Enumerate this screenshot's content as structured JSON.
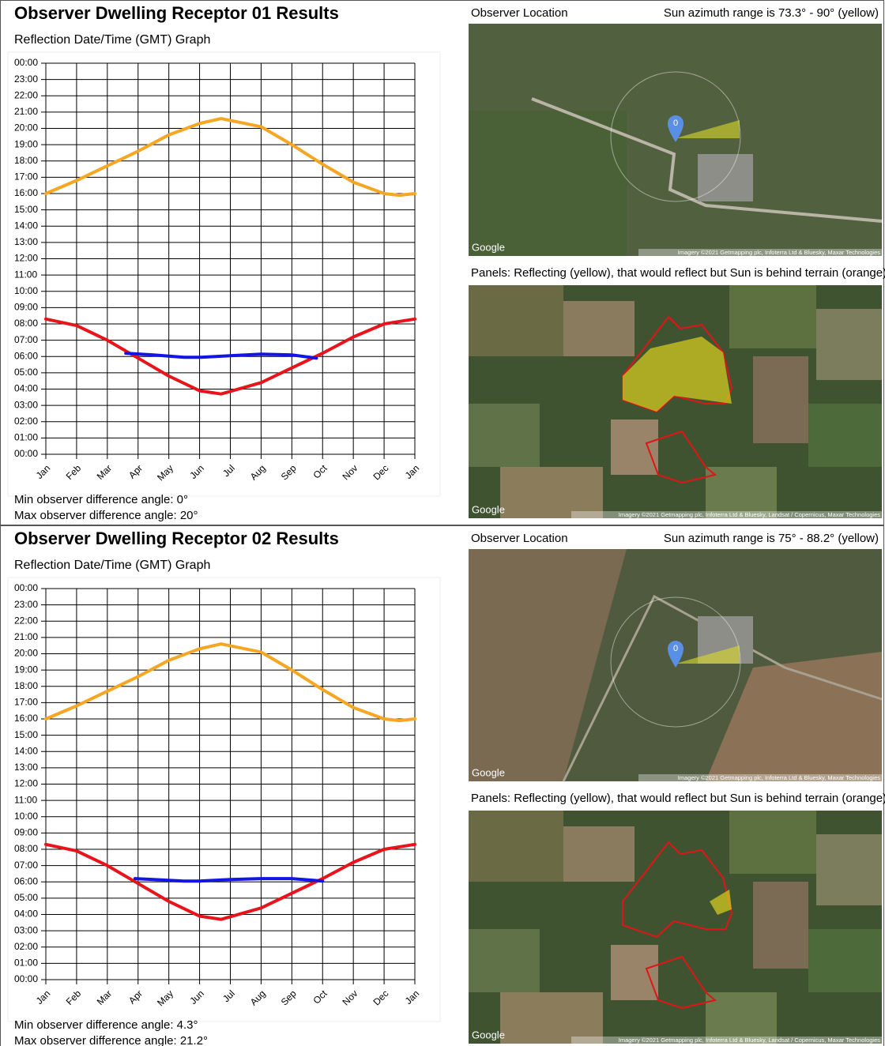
{
  "reports": [
    {
      "title": "Observer Dwelling Receptor 01 Results",
      "observer_location": "Observer Location",
      "sun_azimuth": "Sun azimuth range is 73.3° - 90° (yellow)",
      "pin_label": "0",
      "panels_caption": "Panels: Reflecting (yellow), that would reflect but Sun is behind terrain (orange)",
      "map1_logo": "Google",
      "map1_credit": "Imagery ©2021 Getmapping plc, Infoterra Ltd & Bluesky, Maxar Technologies",
      "map2_logo": "Google",
      "map2_credit": "Imagery ©2021 Getmapping plc, Infoterra Ltd & Bluesky, Landsat / Copernicus, Maxar Technologies",
      "min_angle": "Min observer difference angle: 0°",
      "max_angle": "Max observer difference angle: 20°"
    },
    {
      "title": "Observer Dwelling Receptor 02 Results",
      "observer_location": "Observer Location",
      "sun_azimuth": "Sun azimuth range is 75° - 88.2° (yellow)",
      "pin_label": "0",
      "panels_caption": "Panels: Reflecting (yellow), that would reflect but Sun is behind terrain (orange)",
      "map1_logo": "Google",
      "map1_credit": "Imagery ©2021 Getmapping plc, Infoterra Ltd & Bluesky, Maxar Technologies",
      "map2_logo": "Google",
      "map2_credit": "Imagery ©2021 Getmapping plc, Infoterra Ltd & Bluesky, Landsat / Copernicus, Maxar Technologies",
      "min_angle": "Min observer difference angle: 4.3°",
      "max_angle": "Max observer difference angle: 21.2°"
    }
  ],
  "chart_data": [
    {
      "type": "line",
      "title": "Reflection Date/Time (GMT) Graph",
      "grid": true,
      "xlim": [
        0,
        12
      ],
      "xticks": [
        {
          "value": 0,
          "label": "Jan"
        },
        {
          "value": 1,
          "label": "Feb"
        },
        {
          "value": 2,
          "label": "Mar"
        },
        {
          "value": 3,
          "label": "Apr"
        },
        {
          "value": 4,
          "label": "May"
        },
        {
          "value": 5,
          "label": "Jun"
        },
        {
          "value": 6,
          "label": "Jul"
        },
        {
          "value": 7,
          "label": "Aug"
        },
        {
          "value": 8,
          "label": "Sep"
        },
        {
          "value": 9,
          "label": "Oct"
        },
        {
          "value": 10,
          "label": "Nov"
        },
        {
          "value": 11,
          "label": "Dec"
        },
        {
          "value": 12,
          "label": "Jan"
        }
      ],
      "ylim": [
        0,
        24
      ],
      "yticks": [
        {
          "value": 24,
          "label": "00:00"
        },
        {
          "value": 23,
          "label": "23:00"
        },
        {
          "value": 22,
          "label": "22:00"
        },
        {
          "value": 21,
          "label": "21:00"
        },
        {
          "value": 20,
          "label": "20:00"
        },
        {
          "value": 19,
          "label": "19:00"
        },
        {
          "value": 18,
          "label": "18:00"
        },
        {
          "value": 17,
          "label": "17:00"
        },
        {
          "value": 16,
          "label": "16:00"
        },
        {
          "value": 15,
          "label": "15:00"
        },
        {
          "value": 14,
          "label": "14:00"
        },
        {
          "value": 13,
          "label": "13:00"
        },
        {
          "value": 12,
          "label": "12:00"
        },
        {
          "value": 11,
          "label": "11:00"
        },
        {
          "value": 10,
          "label": "10:00"
        },
        {
          "value": 9,
          "label": "09:00"
        },
        {
          "value": 8,
          "label": "08:00"
        },
        {
          "value": 7,
          "label": "07:00"
        },
        {
          "value": 6,
          "label": "06:00"
        },
        {
          "value": 5,
          "label": "05:00"
        },
        {
          "value": 4,
          "label": "04:00"
        },
        {
          "value": 3,
          "label": "03:00"
        },
        {
          "value": 2,
          "label": "02:00"
        },
        {
          "value": 1,
          "label": "01:00"
        },
        {
          "value": 0,
          "label": "00:00"
        }
      ],
      "series": [
        {
          "color": "#f5a623",
          "x": [
            0,
            1,
            2,
            3,
            4,
            5,
            5.7,
            7,
            8,
            9,
            10,
            11,
            11.5,
            12
          ],
          "values": [
            16.0,
            16.8,
            17.7,
            18.6,
            19.6,
            20.3,
            20.6,
            20.1,
            19.0,
            17.8,
            16.7,
            16.0,
            15.9,
            16.0
          ]
        },
        {
          "color": "#e8141b",
          "x": [
            0,
            1,
            2,
            3,
            4,
            5,
            5.7,
            7,
            8,
            9,
            10,
            11,
            12
          ],
          "values": [
            8.3,
            7.9,
            7.0,
            5.9,
            4.8,
            3.9,
            3.7,
            4.4,
            5.3,
            6.2,
            7.2,
            8.0,
            8.3
          ]
        },
        {
          "color": "#1414e6",
          "x": [
            2.6,
            3.5,
            4.5,
            5.0,
            6.0,
            7.0,
            8.0,
            8.8
          ],
          "values": [
            6.2,
            6.1,
            5.95,
            5.95,
            6.05,
            6.15,
            6.1,
            5.9
          ]
        }
      ]
    },
    {
      "type": "line",
      "title": "Reflection Date/Time (GMT) Graph",
      "grid": true,
      "xlim": [
        0,
        12
      ],
      "xticks": [
        {
          "value": 0,
          "label": "Jan"
        },
        {
          "value": 1,
          "label": "Feb"
        },
        {
          "value": 2,
          "label": "Mar"
        },
        {
          "value": 3,
          "label": "Apr"
        },
        {
          "value": 4,
          "label": "May"
        },
        {
          "value": 5,
          "label": "Jun"
        },
        {
          "value": 6,
          "label": "Jul"
        },
        {
          "value": 7,
          "label": "Aug"
        },
        {
          "value": 8,
          "label": "Sep"
        },
        {
          "value": 9,
          "label": "Oct"
        },
        {
          "value": 10,
          "label": "Nov"
        },
        {
          "value": 11,
          "label": "Dec"
        },
        {
          "value": 12,
          "label": "Jan"
        }
      ],
      "ylim": [
        0,
        24
      ],
      "yticks": [
        {
          "value": 24,
          "label": "00:00"
        },
        {
          "value": 23,
          "label": "23:00"
        },
        {
          "value": 22,
          "label": "22:00"
        },
        {
          "value": 21,
          "label": "21:00"
        },
        {
          "value": 20,
          "label": "20:00"
        },
        {
          "value": 19,
          "label": "19:00"
        },
        {
          "value": 18,
          "label": "18:00"
        },
        {
          "value": 17,
          "label": "17:00"
        },
        {
          "value": 16,
          "label": "16:00"
        },
        {
          "value": 15,
          "label": "15:00"
        },
        {
          "value": 14,
          "label": "14:00"
        },
        {
          "value": 13,
          "label": "13:00"
        },
        {
          "value": 12,
          "label": "12:00"
        },
        {
          "value": 11,
          "label": "11:00"
        },
        {
          "value": 10,
          "label": "10:00"
        },
        {
          "value": 9,
          "label": "09:00"
        },
        {
          "value": 8,
          "label": "08:00"
        },
        {
          "value": 7,
          "label": "07:00"
        },
        {
          "value": 6,
          "label": "06:00"
        },
        {
          "value": 5,
          "label": "05:00"
        },
        {
          "value": 4,
          "label": "04:00"
        },
        {
          "value": 3,
          "label": "03:00"
        },
        {
          "value": 2,
          "label": "02:00"
        },
        {
          "value": 1,
          "label": "01:00"
        },
        {
          "value": 0,
          "label": "00:00"
        }
      ],
      "series": [
        {
          "color": "#f5a623",
          "x": [
            0,
            1,
            2,
            3,
            4,
            5,
            5.7,
            7,
            8,
            9,
            10,
            11,
            11.5,
            12
          ],
          "values": [
            16.0,
            16.8,
            17.7,
            18.6,
            19.6,
            20.3,
            20.6,
            20.1,
            19.0,
            17.8,
            16.7,
            16.0,
            15.9,
            16.0
          ]
        },
        {
          "color": "#e8141b",
          "x": [
            0,
            1,
            2,
            3,
            4,
            5,
            5.7,
            7,
            8,
            9,
            10,
            11,
            12
          ],
          "values": [
            8.3,
            7.9,
            7.0,
            5.9,
            4.8,
            3.9,
            3.7,
            4.4,
            5.3,
            6.2,
            7.2,
            8.0,
            8.3
          ]
        },
        {
          "color": "#1414e6",
          "x": [
            2.9,
            3.5,
            4.5,
            5.0,
            6.0,
            7.0,
            8.0,
            8.7,
            9.0
          ],
          "values": [
            6.2,
            6.15,
            6.05,
            6.05,
            6.15,
            6.2,
            6.2,
            6.1,
            6.05
          ]
        }
      ]
    }
  ]
}
